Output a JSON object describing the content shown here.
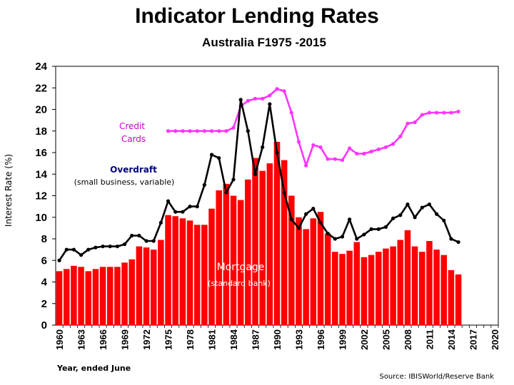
{
  "chart_data": {
    "type": "bar+line",
    "title": "Indicator Lending Rates",
    "subtitle": "Australia   F1975 -2015",
    "ylabel": "Interest Rate (%)",
    "xlabel": "Year, ended June",
    "source": "Source: IBISWorld/Reserve Bank",
    "ylim": [
      0,
      24
    ],
    "xlim": [
      1960,
      2020
    ],
    "yticks": [
      "0",
      "2",
      "4",
      "6",
      "8",
      "10",
      "12",
      "14",
      "16",
      "18",
      "20",
      "22",
      "24"
    ],
    "xticks": [
      "1960",
      "1963",
      "1966",
      "1969",
      "1972",
      "1975",
      "1978",
      "1981",
      "1984",
      "1987",
      "1990",
      "1993",
      "1996",
      "1999",
      "2002",
      "2005",
      "2008",
      "2011",
      "2014",
      "2017",
      "2020"
    ],
    "annotations": {
      "credit_line1": "Credit",
      "credit_line2": "Cards",
      "overdraft": "Overdraft",
      "overdraft_sub": "(small business, variable)",
      "mortgage": "Mortgage",
      "mortgage_sub": "(standard bank)"
    },
    "colors": {
      "mortgage": "#ff0000",
      "overdraft": "#000000",
      "credit": "#ff33ff"
    },
    "mortgage": {
      "name": "Mortgage",
      "x": [
        1960,
        1961,
        1962,
        1963,
        1964,
        1965,
        1966,
        1967,
        1968,
        1969,
        1970,
        1971,
        1972,
        1973,
        1974,
        1975,
        1976,
        1977,
        1978,
        1979,
        1980,
        1981,
        1982,
        1983,
        1984,
        1985,
        1986,
        1987,
        1988,
        1989,
        1990,
        1991,
        1992,
        1993,
        1994,
        1995,
        1996,
        1997,
        1998,
        1999,
        2000,
        2001,
        2002,
        2003,
        2004,
        2005,
        2006,
        2007,
        2008,
        2009,
        2010,
        2011,
        2012,
        2013,
        2014,
        2015
      ],
      "values": [
        5.0,
        5.2,
        5.5,
        5.4,
        5.0,
        5.2,
        5.4,
        5.4,
        5.4,
        5.8,
        6.1,
        7.3,
        7.2,
        7.0,
        7.9,
        10.2,
        10.1,
        9.9,
        9.7,
        9.3,
        9.3,
        10.8,
        12.5,
        13.1,
        12.0,
        11.6,
        13.5,
        15.5,
        14.3,
        15.0,
        17.0,
        15.3,
        12.0,
        10.0,
        8.9,
        9.9,
        10.5,
        8.5,
        6.8,
        6.6,
        6.9,
        7.7,
        6.3,
        6.5,
        6.8,
        7.1,
        7.3,
        7.9,
        8.8,
        7.3,
        6.8,
        7.8,
        7.0,
        6.5,
        5.1,
        4.7
      ]
    },
    "overdraft": {
      "name": "Overdraft",
      "x": [
        1960,
        1961,
        1962,
        1963,
        1964,
        1965,
        1966,
        1967,
        1968,
        1969,
        1970,
        1971,
        1972,
        1973,
        1974,
        1975,
        1976,
        1977,
        1978,
        1979,
        1980,
        1981,
        1982,
        1983,
        1984,
        1985,
        1986,
        1987,
        1988,
        1989,
        1990,
        1991,
        1992,
        1993,
        1994,
        1995,
        1996,
        1997,
        1998,
        1999,
        2000,
        2001,
        2002,
        2003,
        2004,
        2005,
        2006,
        2007,
        2008,
        2009,
        2010,
        2011,
        2012,
        2013,
        2014,
        2015
      ],
      "values": [
        6.0,
        7.0,
        7.0,
        6.5,
        7.0,
        7.2,
        7.3,
        7.3,
        7.3,
        7.5,
        8.3,
        8.3,
        7.8,
        7.8,
        9.5,
        11.5,
        10.5,
        10.5,
        11.0,
        11.0,
        13.0,
        15.8,
        15.5,
        12.3,
        13.5,
        20.9,
        18.0,
        14.0,
        16.5,
        20.5,
        16.0,
        12.3,
        9.8,
        9.0,
        10.3,
        10.8,
        9.5,
        8.5,
        8.0,
        8.2,
        9.8,
        8.0,
        8.4,
        8.9,
        8.9,
        9.1,
        9.9,
        10.2,
        11.2,
        10.0,
        10.9,
        11.2,
        10.3,
        9.7,
        8.0,
        7.7
      ]
    },
    "credit_cards": {
      "name": "Credit Cards",
      "x": [
        1975,
        1976,
        1977,
        1978,
        1979,
        1980,
        1981,
        1982,
        1983,
        1984,
        1985,
        1986,
        1987,
        1988,
        1989,
        1990,
        1991,
        1992,
        1993,
        1994,
        1995,
        1996,
        1997,
        1998,
        1999,
        2000,
        2001,
        2002,
        2003,
        2004,
        2005,
        2006,
        2007,
        2008,
        2009,
        2010,
        2011,
        2012,
        2013,
        2014,
        2015
      ],
      "values": [
        18.0,
        18.0,
        18.0,
        18.0,
        18.0,
        18.0,
        18.0,
        18.0,
        18.0,
        18.3,
        20.3,
        20.8,
        21.0,
        21.0,
        21.3,
        21.9,
        21.7,
        19.7,
        17.0,
        14.8,
        16.7,
        16.5,
        15.4,
        15.4,
        15.3,
        16.4,
        15.9,
        15.9,
        16.1,
        16.3,
        16.5,
        16.8,
        17.5,
        18.7,
        18.8,
        19.5,
        19.7,
        19.7,
        19.7,
        19.7,
        19.8
      ]
    }
  }
}
